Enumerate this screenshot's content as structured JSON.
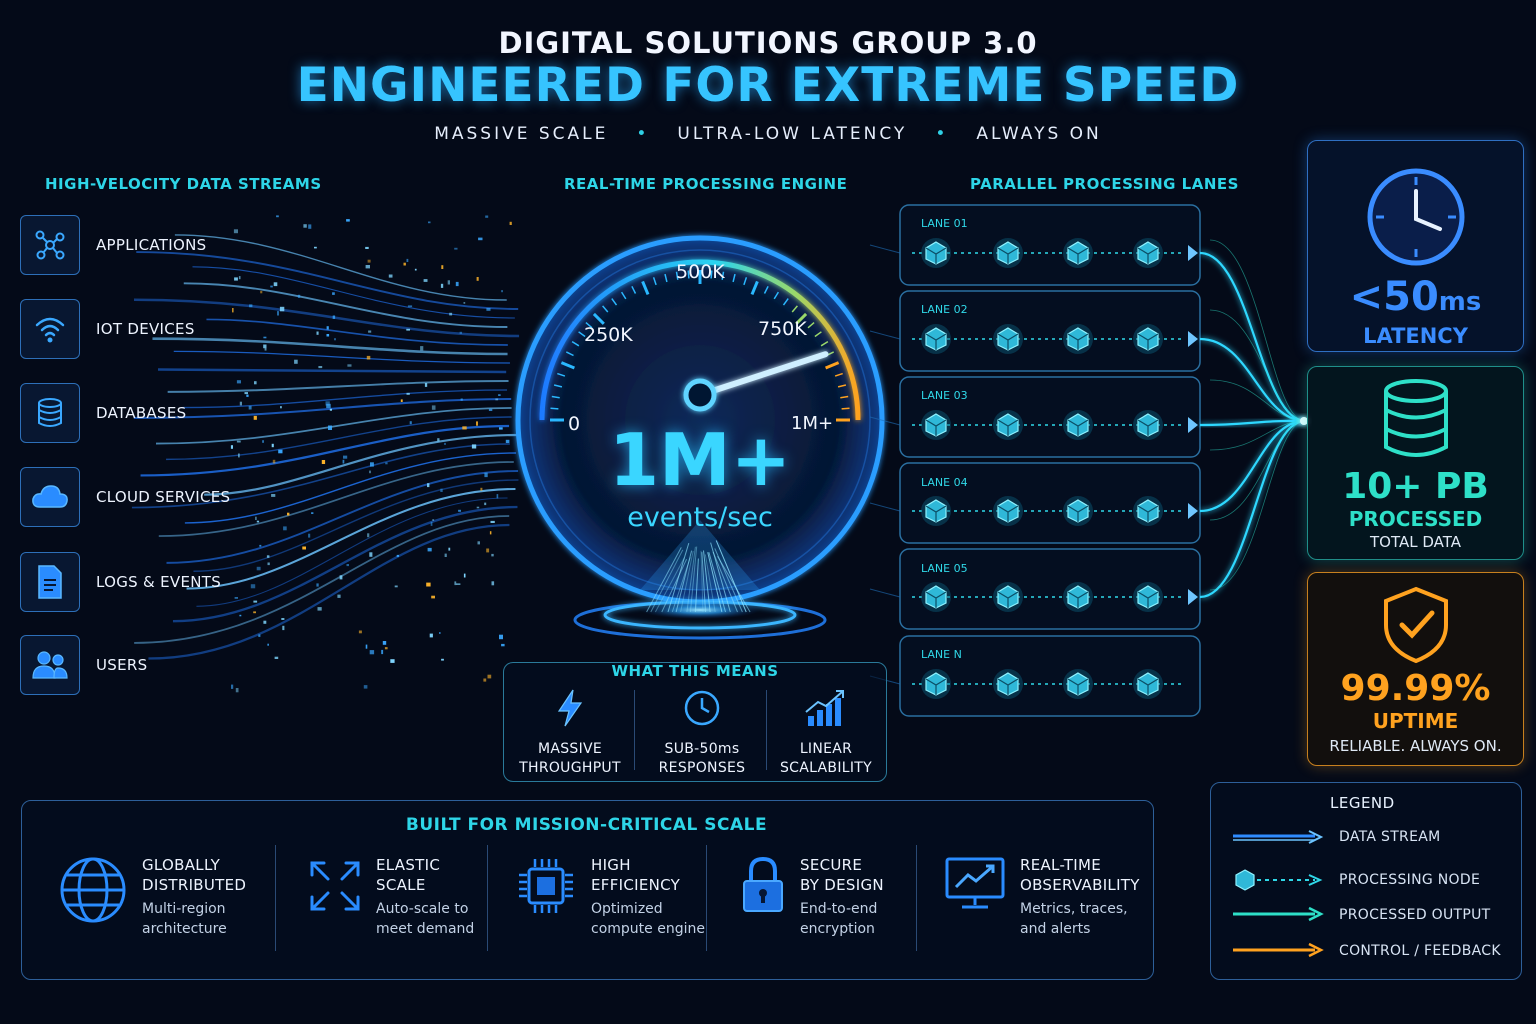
{
  "header": {
    "supertitle": "DIGITAL SOLUTIONS GROUP 3.0",
    "title": "ENGINEERED FOR EXTREME SPEED",
    "tagline": [
      "MASSIVE SCALE",
      "ULTRA-LOW LATENCY",
      "ALWAYS ON"
    ]
  },
  "streams": {
    "title": "HIGH-VELOCITY DATA STREAMS",
    "sources": [
      {
        "label": "APPLICATIONS",
        "icon": "network-nodes-icon"
      },
      {
        "label": "IOT DEVICES",
        "icon": "wifi-icon"
      },
      {
        "label": "DATABASES",
        "icon": "database-icon"
      },
      {
        "label": "CLOUD SERVICES",
        "icon": "cloud-icon"
      },
      {
        "label": "LOGS & EVENTS",
        "icon": "document-icon"
      },
      {
        "label": "USERS",
        "icon": "users-icon"
      }
    ]
  },
  "engine": {
    "title": "REAL-TIME PROCESSING ENGINE",
    "gauge_ticks": [
      "0",
      "250K",
      "500K",
      "750K",
      "1M+"
    ],
    "value": "1M+",
    "unit": "events/sec",
    "needle_fraction": 0.9
  },
  "meaning": {
    "title": "WHAT THIS MEANS",
    "items": [
      {
        "line1": "MASSIVE",
        "line2": "THROUGHPUT",
        "icon": "lightning-icon"
      },
      {
        "line1": "SUB-50ms",
        "line2": "RESPONSES",
        "icon": "clock-icon"
      },
      {
        "line1": "LINEAR",
        "line2": "SCALABILITY",
        "icon": "growth-chart-icon"
      }
    ]
  },
  "lanes": {
    "title": "PARALLEL PROCESSING LANES",
    "items": [
      "LANE 01",
      "LANE 02",
      "LANE 03",
      "LANE 04",
      "LANE 05",
      "LANE N"
    ]
  },
  "stats": [
    {
      "value": "<50",
      "unit": "ms",
      "label": "LATENCY",
      "sub": "",
      "icon": "clock-icon",
      "color": "#2f8cff"
    },
    {
      "value": "10+ PB",
      "unit": "",
      "label": "PROCESSED",
      "sub": "TOTAL DATA",
      "icon": "database-icon",
      "color": "#2ee0c8"
    },
    {
      "value": "99.99%",
      "unit": "",
      "label": "UPTIME",
      "sub": "RELIABLE. ALWAYS ON.",
      "icon": "shield-check-icon",
      "color": "#ffa21f"
    }
  ],
  "scale": {
    "title": "BUILT FOR MISSION-CRITICAL SCALE",
    "features": [
      {
        "title1": "GLOBALLY",
        "title2": "DISTRIBUTED",
        "desc1": "Multi-region",
        "desc2": "architecture",
        "icon": "globe-icon"
      },
      {
        "title1": "ELASTIC",
        "title2": "SCALE",
        "desc1": "Auto-scale to",
        "desc2": "meet demand",
        "icon": "expand-arrows-icon"
      },
      {
        "title1": "HIGH",
        "title2": "EFFICIENCY",
        "desc1": "Optimized",
        "desc2": "compute engine",
        "icon": "cpu-chip-icon"
      },
      {
        "title1": "SECURE",
        "title2": "BY DESIGN",
        "desc1": "End-to-end",
        "desc2": "encryption",
        "icon": "padlock-icon"
      },
      {
        "title1": "REAL-TIME",
        "title2": "OBSERVABILITY",
        "desc1": "Metrics, traces,",
        "desc2": "and alerts",
        "icon": "monitor-chart-icon"
      }
    ]
  },
  "legend": {
    "title": "LEGEND",
    "items": [
      {
        "label": "DATA STREAM",
        "color": "#2f8cff"
      },
      {
        "label": "PROCESSING NODE",
        "color": "#2fd8e8"
      },
      {
        "label": "PROCESSED OUTPUT",
        "color": "#2ee0c8"
      },
      {
        "label": "CONTROL / FEEDBACK",
        "color": "#ffa21f"
      }
    ]
  },
  "colors": {
    "background": "#040a18",
    "accent": "#36c4ff",
    "teal": "#2ed6e8",
    "orange": "#ffa21f"
  }
}
